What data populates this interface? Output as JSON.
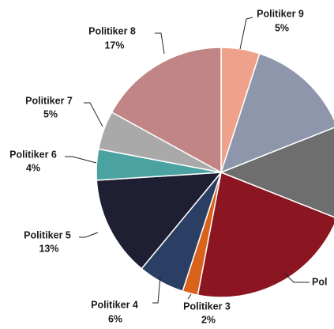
{
  "chart_data": {
    "type": "pie",
    "categories": [
      "Politiker 9",
      null,
      null,
      "Pol",
      "Politiker 3",
      "Politiker 4",
      "Politiker 5",
      "Politiker 6",
      "Politiker 7",
      "Politiker 8"
    ],
    "values": [
      5,
      14,
      12,
      22,
      2,
      6,
      13,
      4,
      5,
      17
    ],
    "value_labels": [
      "5%",
      null,
      null,
      null,
      "2%",
      "6%",
      "13%",
      "4%",
      "5%",
      "17%"
    ],
    "colors": [
      "#f0a18c",
      "#8e96ab",
      "#6e6e6e",
      "#8b1520",
      "#d9621c",
      "#2b3e63",
      "#1f1f33",
      "#4aa3a0",
      "#a9a9a9",
      "#c08584"
    ]
  }
}
